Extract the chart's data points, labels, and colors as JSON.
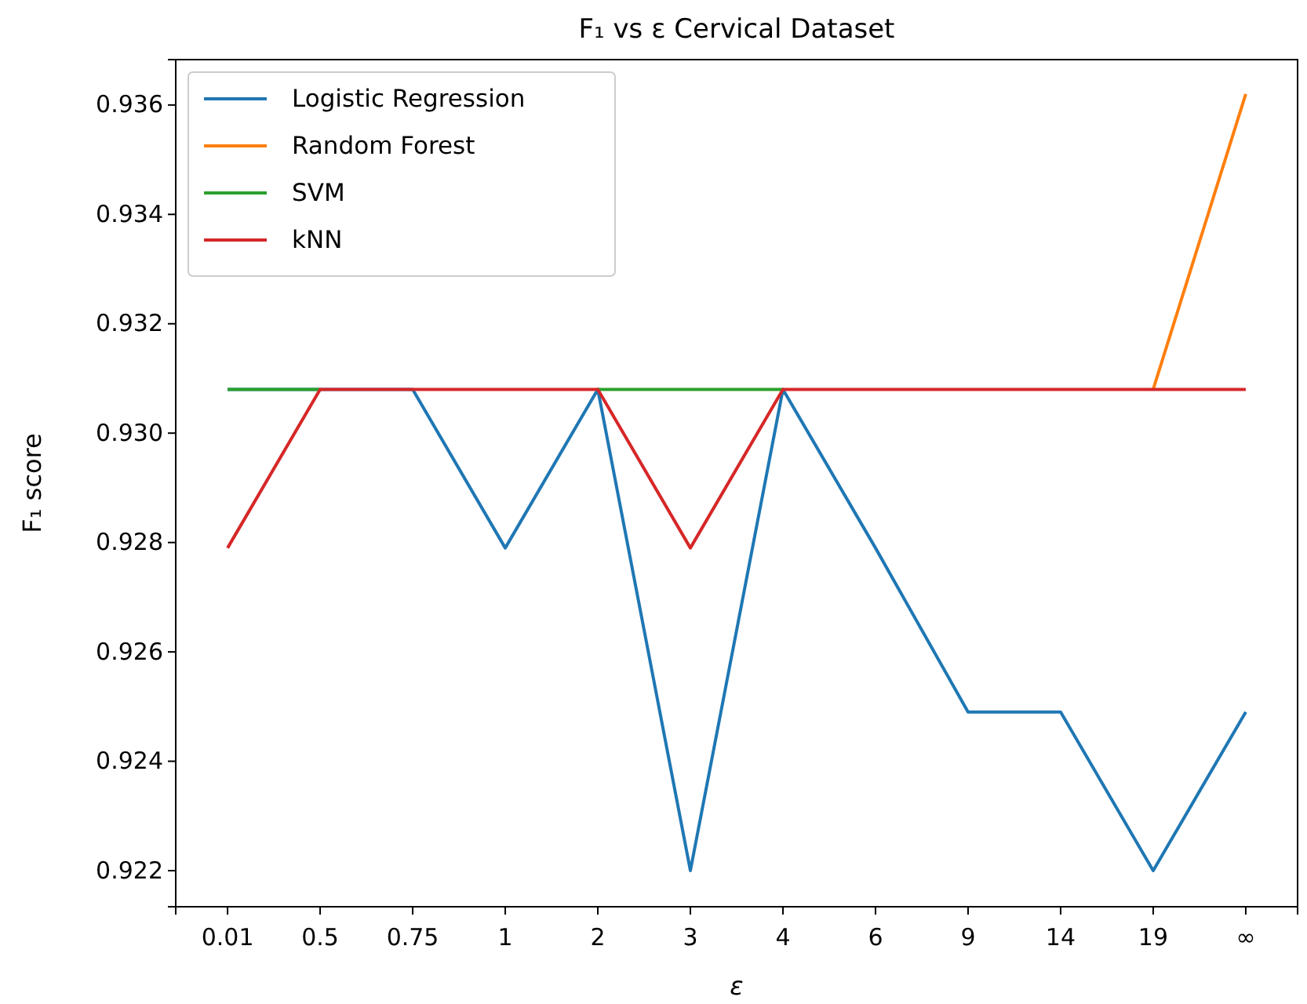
{
  "chart_data": {
    "type": "line",
    "title": "F₁ vs ε Cervical Dataset",
    "xlabel": "ε",
    "ylabel": "F₁ score",
    "categories": [
      "0.01",
      "0.5",
      "0.75",
      "1",
      "2",
      "3",
      "4",
      "6",
      "9",
      "14",
      "19",
      "∞"
    ],
    "series": [
      {
        "name": "Logistic Regression",
        "color": "#1f77b4",
        "values": [
          0.9308,
          0.9308,
          0.9308,
          0.9279,
          0.9308,
          0.922,
          0.9308,
          0.9279,
          0.9249,
          0.9249,
          0.922,
          0.9249
        ]
      },
      {
        "name": "Random Forest",
        "color": "#ff7f0e",
        "values": [
          null,
          null,
          null,
          null,
          null,
          null,
          null,
          null,
          null,
          null,
          0.9308,
          0.9362
        ]
      },
      {
        "name": "SVM",
        "color": "#2ca02c",
        "values": [
          0.9308,
          0.9308,
          null,
          null,
          0.9308,
          0.9308,
          0.9308,
          null,
          null,
          null,
          null,
          null
        ]
      },
      {
        "name": "kNN",
        "color": "#d62728",
        "values": [
          0.9279,
          0.9308,
          0.9308,
          0.9308,
          0.9308,
          0.9279,
          0.9308,
          0.9308,
          0.9308,
          0.9308,
          0.9308,
          0.9308
        ]
      }
    ],
    "ylim": [
      0.92134,
      0.93683
    ],
    "yticks": [
      0.922,
      0.924,
      0.926,
      0.928,
      {
        "value": 0.93,
        "label": "0.930"
      },
      0.932,
      0.934,
      0.936
    ],
    "legend": "top left",
    "grid": false
  }
}
